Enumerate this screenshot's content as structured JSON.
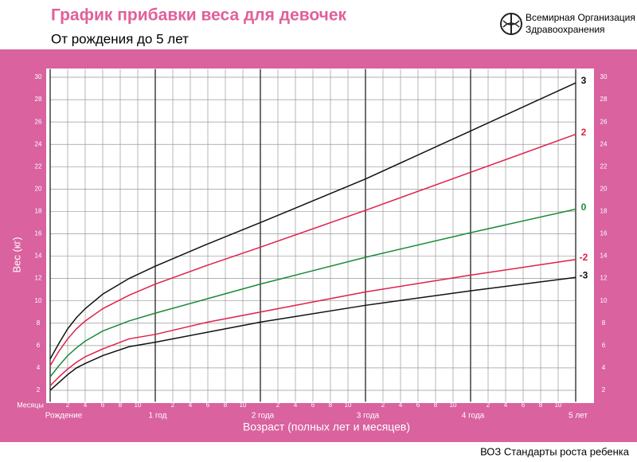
{
  "chart_data": {
    "type": "line",
    "title": "График прибавки веса для девочек",
    "subtitle": "От рождения до 5 лет",
    "organization": [
      "Всемирная Организация",
      "Здравоохранения"
    ],
    "footer": "ВОЗ Стандарты роста ребенка",
    "xlabel": "Возраст (полных лет и месяцев)",
    "ylabel": "Вес (кг)",
    "x_minor_label": "Месяцы",
    "x": [
      0,
      1,
      2,
      3,
      4,
      6,
      9,
      12,
      18,
      24,
      36,
      48,
      60
    ],
    "series": [
      {
        "name": "3",
        "color": "#111111",
        "values": [
          4.8,
          6.2,
          7.5,
          8.5,
          9.3,
          10.6,
          12.0,
          13.1,
          15.1,
          17.0,
          20.9,
          25.2,
          29.5
        ]
      },
      {
        "name": "2",
        "color": "#e0204a",
        "values": [
          4.2,
          5.5,
          6.6,
          7.5,
          8.2,
          9.3,
          10.5,
          11.5,
          13.2,
          14.8,
          18.1,
          21.5,
          24.9
        ]
      },
      {
        "name": "0",
        "color": "#1a8a3a",
        "values": [
          3.2,
          4.2,
          5.1,
          5.8,
          6.4,
          7.3,
          8.2,
          8.9,
          10.2,
          11.5,
          13.9,
          16.1,
          18.2
        ]
      },
      {
        "name": "-2",
        "color": "#e0204a",
        "values": [
          2.4,
          3.2,
          3.9,
          4.5,
          5.0,
          5.7,
          6.6,
          7.0,
          8.1,
          9.0,
          10.8,
          12.3,
          13.7
        ]
      },
      {
        "name": "-3",
        "color": "#111111",
        "values": [
          2.0,
          2.7,
          3.4,
          4.0,
          4.4,
          5.1,
          5.9,
          6.3,
          7.2,
          8.1,
          9.6,
          10.9,
          12.1
        ]
      }
    ],
    "xlim": [
      0,
      60
    ],
    "ylim": [
      1.4,
      30.6
    ],
    "yticks": [
      2,
      4,
      6,
      8,
      10,
      12,
      14,
      16,
      18,
      20,
      22,
      24,
      26,
      28,
      30
    ],
    "xticks": [
      {
        "value": 0,
        "label": "Рождение"
      },
      {
        "value": 2,
        "label": "2"
      },
      {
        "value": 4,
        "label": "4"
      },
      {
        "value": 6,
        "label": "6"
      },
      {
        "value": 8,
        "label": "8"
      },
      {
        "value": 10,
        "label": "10"
      },
      {
        "value": 12,
        "label": "1 год"
      },
      {
        "value": 14,
        "label": "2"
      },
      {
        "value": 16,
        "label": "4"
      },
      {
        "value": 18,
        "label": "6"
      },
      {
        "value": 20,
        "label": "8"
      },
      {
        "value": 22,
        "label": "10"
      },
      {
        "value": 24,
        "label": "2 года"
      },
      {
        "value": 26,
        "label": "2"
      },
      {
        "value": 28,
        "label": "4"
      },
      {
        "value": 30,
        "label": "6"
      },
      {
        "value": 32,
        "label": "8"
      },
      {
        "value": 34,
        "label": "10"
      },
      {
        "value": 36,
        "label": "3 года"
      },
      {
        "value": 38,
        "label": "2"
      },
      {
        "value": 40,
        "label": "4"
      },
      {
        "value": 42,
        "label": "6"
      },
      {
        "value": 44,
        "label": "8"
      },
      {
        "value": 46,
        "label": "10"
      },
      {
        "value": 48,
        "label": "4 года"
      },
      {
        "value": 50,
        "label": "2"
      },
      {
        "value": 52,
        "label": "4"
      },
      {
        "value": 54,
        "label": "6"
      },
      {
        "value": 56,
        "label": "8"
      },
      {
        "value": 58,
        "label": "10"
      },
      {
        "value": 60,
        "label": "5 лет"
      }
    ],
    "grid": true
  }
}
